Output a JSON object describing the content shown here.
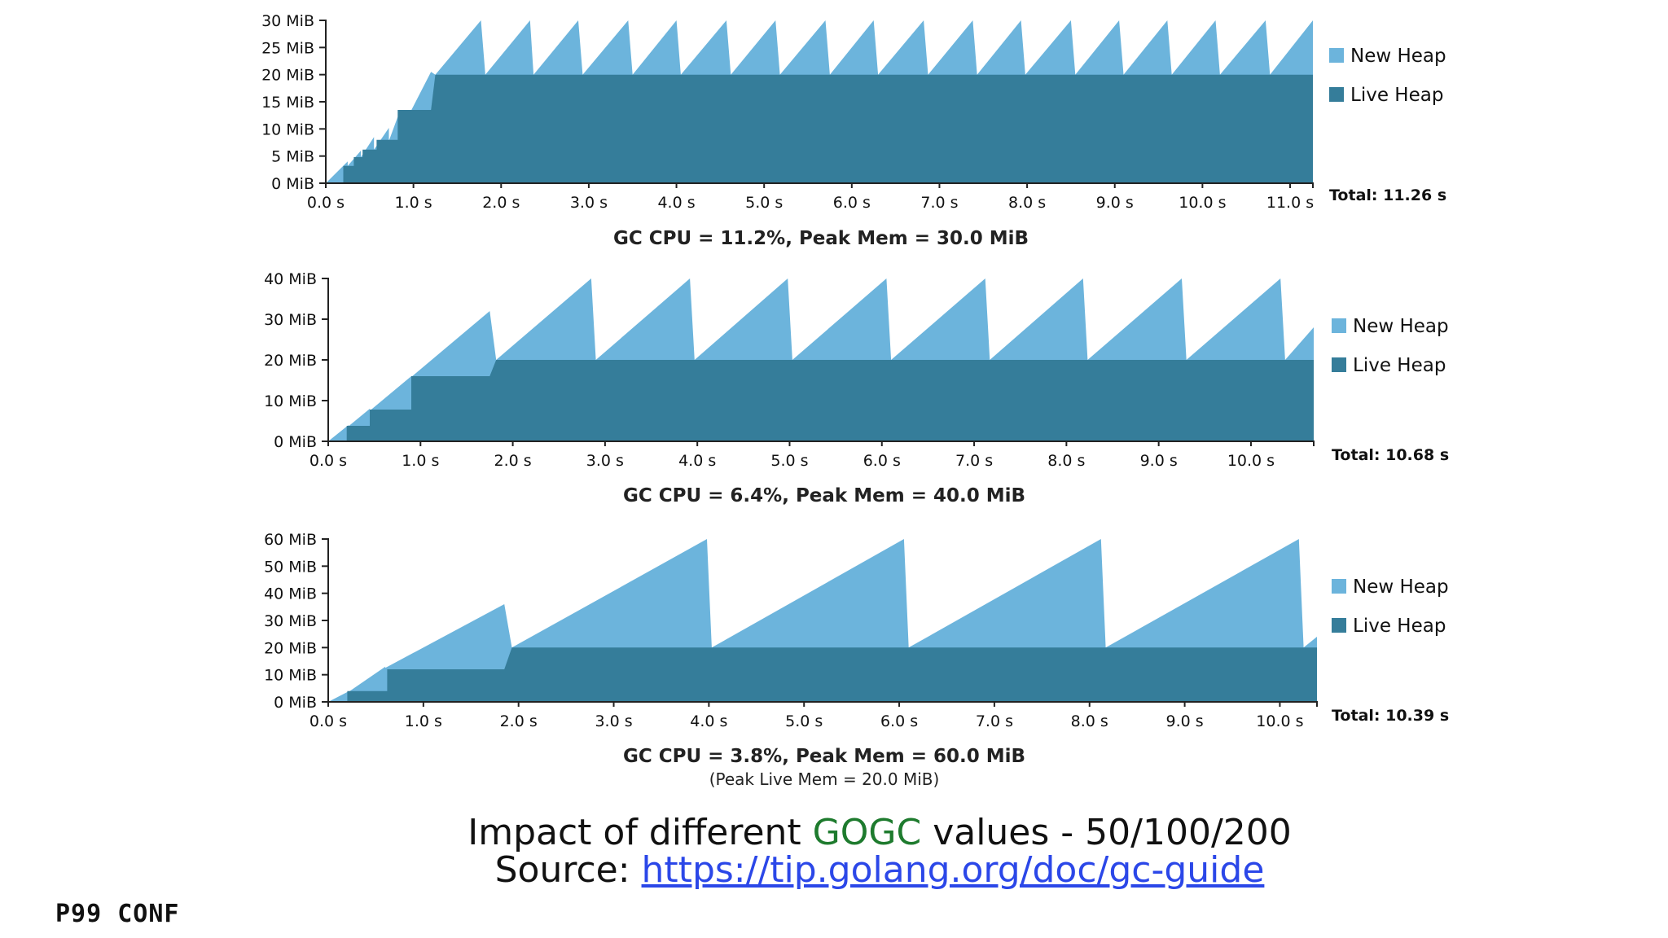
{
  "legend": {
    "new_heap": "New Heap",
    "live_heap": "Live Heap"
  },
  "colors": {
    "new_heap": "#6cb4dc",
    "live_heap": "#357d9a"
  },
  "chart_data": [
    {
      "type": "area",
      "ylim": [
        0,
        30
      ],
      "xlim": [
        0,
        11.26
      ],
      "yticks": [
        "0 MiB",
        "5 MiB",
        "10 MiB",
        "15 MiB",
        "20 MiB",
        "25 MiB",
        "30 MiB"
      ],
      "xticks": [
        "0.0 s",
        "1.0 s",
        "2.0 s",
        "3.0 s",
        "4.0 s",
        "5.0 s",
        "6.0 s",
        "7.0 s",
        "8.0 s",
        "9.0 s",
        "10.0 s",
        "11.0 s"
      ],
      "series": [
        {
          "name": "New Heap",
          "x": [
            0.0,
            0.25,
            0.25,
            0.4,
            0.4,
            0.55,
            0.55,
            0.72,
            0.72,
            0.85,
            0.85,
            1.2,
            1.25,
            1.77,
            1.82,
            2.33,
            2.37,
            2.88,
            2.93,
            3.45,
            3.5,
            4.0,
            4.05,
            4.57,
            4.62,
            5.13,
            5.18,
            5.7,
            5.75,
            6.25,
            6.3,
            6.82,
            6.87,
            7.38,
            7.43,
            7.93,
            7.98,
            8.5,
            8.55,
            9.05,
            9.1,
            9.6,
            9.65,
            10.15,
            10.2,
            10.72,
            10.77,
            11.26
          ],
          "values": [
            0,
            4,
            3.2,
            6,
            4.8,
            8.5,
            6.2,
            10.2,
            7.8,
            13.5,
            9.5,
            20.5,
            20,
            30,
            20,
            30,
            20,
            30,
            20,
            30,
            20,
            30,
            20,
            30,
            20,
            30,
            20,
            30,
            20,
            30,
            20,
            30,
            20,
            30,
            20,
            30,
            20,
            30,
            20,
            30,
            20,
            30,
            20,
            30,
            20,
            30,
            20,
            30
          ]
        },
        {
          "name": "Live Heap",
          "x": [
            0.0,
            0.2,
            0.2,
            0.32,
            0.32,
            0.42,
            0.42,
            0.58,
            0.58,
            0.82,
            0.82,
            1.2,
            1.25,
            11.26
          ],
          "values": [
            0,
            0,
            3.2,
            3.2,
            4.8,
            4.8,
            6.2,
            6.2,
            8.0,
            8.0,
            13.5,
            13.5,
            20,
            20
          ]
        }
      ],
      "total": "Total: 11.26 s",
      "title": "GC CPU = 11.2%, Peak Mem = 30.0 MiB"
    },
    {
      "type": "area",
      "ylim": [
        0,
        40
      ],
      "xlim": [
        0,
        10.68
      ],
      "yticks": [
        "0 MiB",
        "10 MiB",
        "20 MiB",
        "30 MiB",
        "40 MiB"
      ],
      "xticks": [
        "0.0 s",
        "1.0 s",
        "2.0 s",
        "3.0 s",
        "4.0 s",
        "5.0 s",
        "6.0 s",
        "7.0 s",
        "8.0 s",
        "9.0 s",
        "10.0 s"
      ],
      "series": [
        {
          "name": "New Heap",
          "x": [
            0.0,
            0.22,
            0.22,
            0.45,
            0.45,
            0.9,
            0.9,
            1.75,
            1.82,
            2.85,
            2.9,
            3.92,
            3.97,
            4.98,
            5.03,
            6.05,
            6.1,
            7.12,
            7.17,
            8.18,
            8.23,
            9.25,
            9.3,
            10.32,
            10.37,
            10.68
          ],
          "values": [
            0,
            4,
            3.7,
            8,
            7.5,
            16,
            15.8,
            32,
            20,
            40,
            20,
            40,
            20,
            40,
            20,
            40,
            20,
            40,
            20,
            40,
            20,
            40,
            20,
            40,
            20,
            28
          ]
        },
        {
          "name": "Live Heap",
          "x": [
            0.0,
            0.2,
            0.2,
            0.45,
            0.45,
            0.9,
            0.9,
            1.75,
            1.82,
            10.68
          ],
          "values": [
            0,
            0,
            3.8,
            3.8,
            7.8,
            7.8,
            16,
            16,
            20,
            20
          ]
        }
      ],
      "total": "Total: 10.68 s",
      "title": "GC CPU = 6.4%, Peak Mem = 40.0 MiB"
    },
    {
      "type": "area",
      "ylim": [
        0,
        60
      ],
      "xlim": [
        0,
        10.39
      ],
      "yticks": [
        "0 MiB",
        "10 MiB",
        "20 MiB",
        "30 MiB",
        "40 MiB",
        "50 MiB",
        "60 MiB"
      ],
      "xticks": [
        "0.0 s",
        "1.0 s",
        "2.0 s",
        "3.0 s",
        "4.0 s",
        "5.0 s",
        "6.0 s",
        "7.0 s",
        "8.0 s",
        "9.0 s",
        "10.0 s"
      ],
      "series": [
        {
          "name": "New Heap",
          "x": [
            0.0,
            0.22,
            0.22,
            0.6,
            0.6,
            1.85,
            1.93,
            3.98,
            4.03,
            6.05,
            6.1,
            8.12,
            8.17,
            10.2,
            10.25,
            10.39
          ],
          "values": [
            0,
            4,
            3.8,
            13,
            12.5,
            36,
            20,
            60,
            20,
            60,
            20,
            60,
            20,
            60,
            20,
            24
          ]
        },
        {
          "name": "Live Heap",
          "x": [
            0.0,
            0.2,
            0.2,
            0.62,
            0.62,
            1.85,
            1.93,
            10.39
          ],
          "values": [
            0,
            0,
            4,
            4,
            12,
            12,
            20,
            20
          ]
        }
      ],
      "total": "Total: 10.39 s",
      "title": "GC CPU = 3.8%, Peak Mem = 60.0 MiB",
      "subtitle": "(Peak Live Mem = 20.0 MiB)"
    }
  ],
  "caption": {
    "line1_before": "Impact of different ",
    "line1_highlight": "GOGC",
    "line1_after": " values - 50/100/200",
    "line2_prefix": "Source: ",
    "line2_link": "https://tip.golang.org/doc/gc-guide"
  },
  "brand": "P99 CONF"
}
